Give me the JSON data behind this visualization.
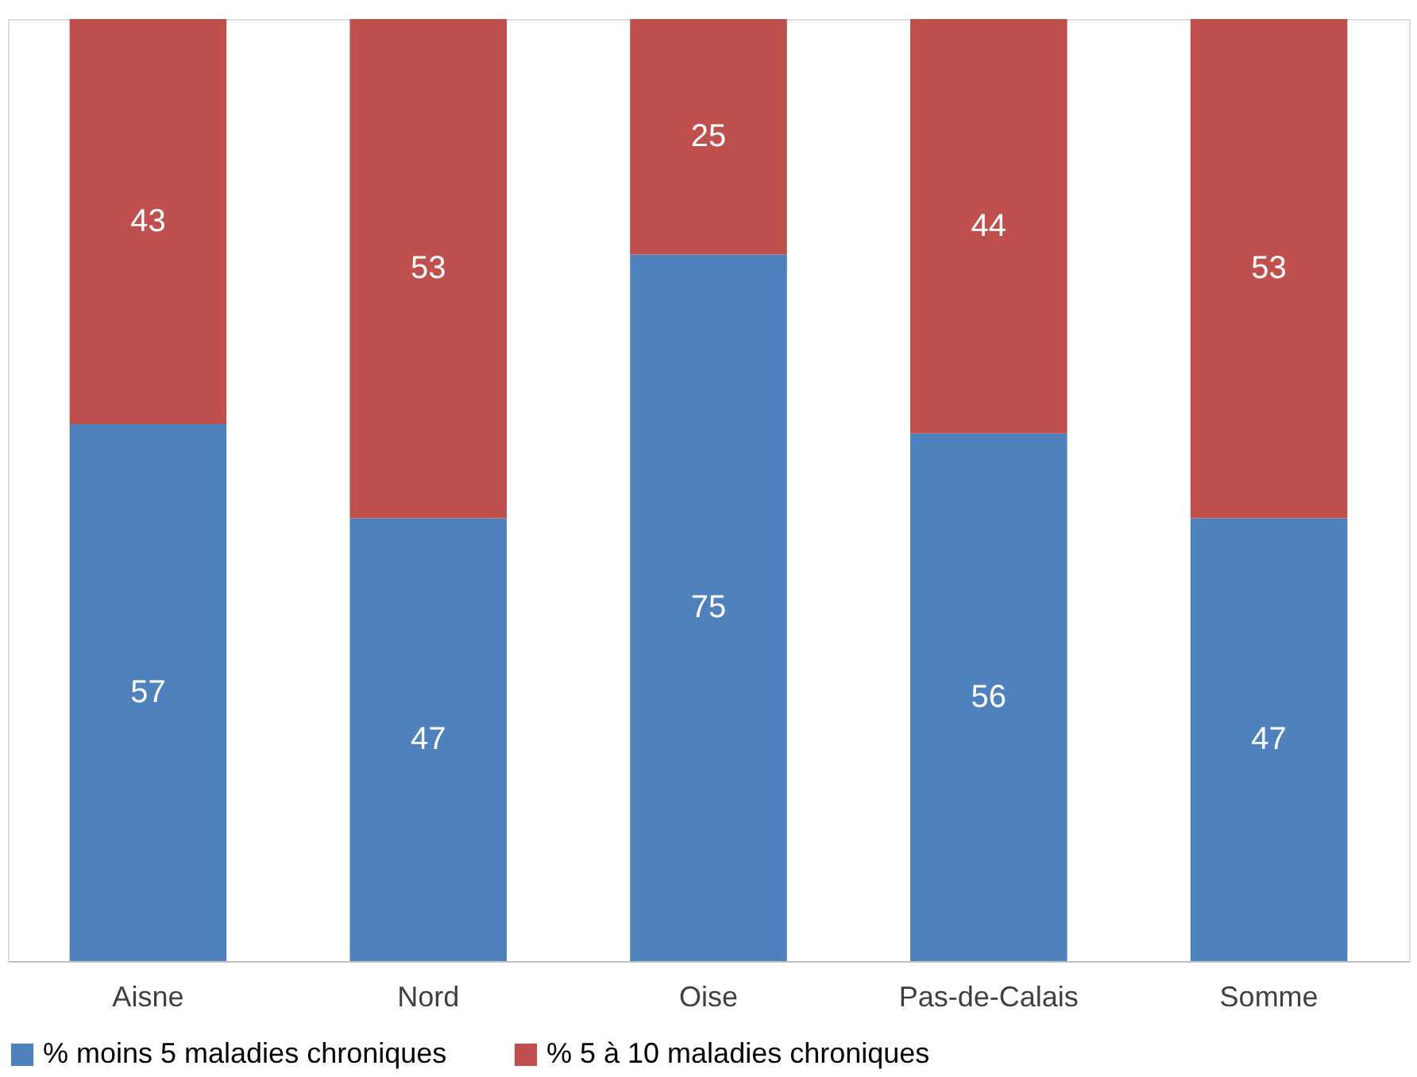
{
  "chart_data": {
    "type": "bar",
    "stacked": true,
    "data_labels": true,
    "legend": "bottom",
    "grid": false,
    "categories": [
      "Aisne",
      "Nord",
      "Oise",
      "Pas-de-Calais",
      "Somme"
    ],
    "series": [
      {
        "name": "% moins 5 maladies chroniques",
        "color": "#4f81bd",
        "values": [
          57,
          47,
          75,
          56,
          47
        ]
      },
      {
        "name": "% 5 à 10 maladies chroniques",
        "color": "#c0504d",
        "values": [
          43,
          53,
          25,
          44,
          53
        ]
      }
    ]
  }
}
